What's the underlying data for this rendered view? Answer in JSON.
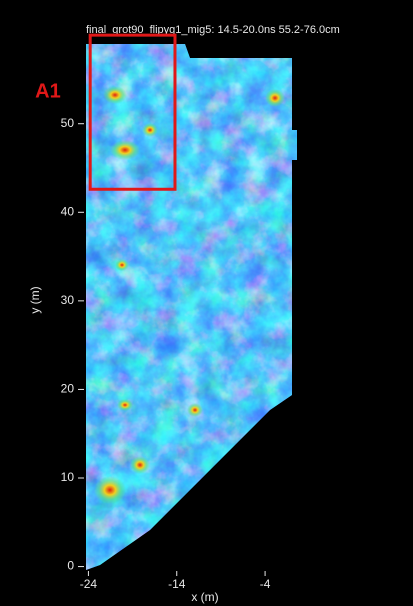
{
  "chart_data": {
    "type": "image",
    "title": "final_grot90_flipyg1_mig5:  14.5-20.0ns  55.2-76.0cm",
    "x_label": "x (m)",
    "y_label": "y (m)",
    "xlim": [
      -24.5,
      -0.5
    ],
    "ylim": [
      -0.5,
      59
    ],
    "xticks": [
      -24,
      -14,
      -4
    ],
    "yticks": [
      0,
      10,
      20,
      30,
      40,
      50
    ],
    "annotations": [
      {
        "label": "A1",
        "color": "#e01818",
        "x": [
          -23.8,
          -14.2
        ],
        "y": [
          42.6,
          60
        ]
      }
    ]
  }
}
